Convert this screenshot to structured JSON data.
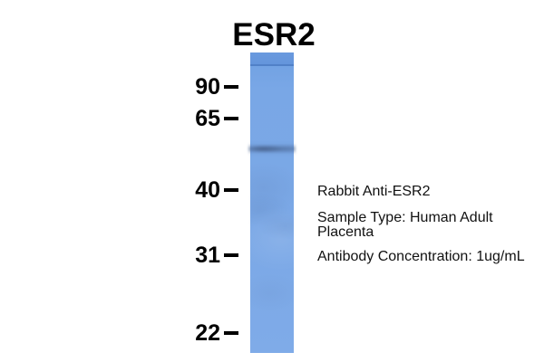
{
  "figure": {
    "title": "ESR2",
    "markers": [
      {
        "label": "90"
      },
      {
        "label": "65"
      },
      {
        "label": "40"
      },
      {
        "label": "31"
      },
      {
        "label": "22"
      }
    ],
    "annotations": {
      "antibody": "Rabbit Anti-ESR2",
      "sample_type": "Sample Type: Human Adult Placenta",
      "concentration": "Antibody Concentration: 1ug/mL"
    },
    "colors": {
      "background": "#FFFFFF",
      "text": "#000000",
      "lane_blue": "#7BA8E6",
      "lane_top_blue": "#6394DC",
      "lane_edge_blue": "#4E7EC6",
      "band_blue": "#5F87B8"
    }
  }
}
